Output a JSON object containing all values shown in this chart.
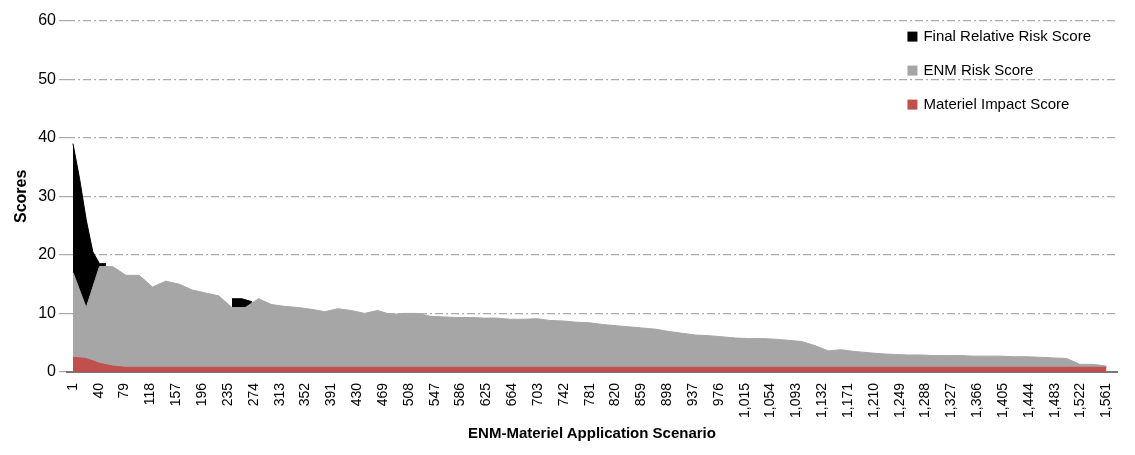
{
  "chart_data": {
    "type": "area",
    "xlabel": "ENM-Materiel Application Scenario",
    "ylabel": "Scores",
    "x": [
      1,
      21,
      41,
      61,
      81,
      101,
      121,
      141,
      161,
      181,
      201,
      221,
      241,
      261,
      281,
      301,
      321,
      341,
      361,
      381,
      401,
      421,
      441,
      461,
      481,
      501,
      521,
      541,
      561,
      581,
      601,
      621,
      641,
      661,
      681,
      701,
      721,
      741,
      761,
      781,
      801,
      821,
      841,
      861,
      881,
      901,
      921,
      941,
      961,
      981,
      1001,
      1021,
      1041,
      1061,
      1081,
      1101,
      1121,
      1141,
      1161,
      1181,
      1201,
      1221,
      1241,
      1261,
      1281,
      1301,
      1321,
      1341,
      1361,
      1381,
      1401,
      1421,
      1441,
      1461,
      1481,
      1501,
      1521,
      1541,
      1561
    ],
    "series": [
      {
        "name": "Final Relative Risk Score",
        "color": "#000000",
        "x": [
          1,
          11,
          21,
          31,
          41,
          51,
          61,
          241,
          256,
          271
        ],
        "values": [
          39,
          33,
          26,
          20.5,
          18.5,
          18.5,
          null,
          12.5,
          12.5,
          12
        ]
      },
      {
        "name": "ENM Risk Score",
        "color": "#a6a6a6",
        "values": [
          17,
          11,
          18,
          18,
          16.5,
          16.5,
          14.5,
          15.5,
          15,
          14,
          13.5,
          13,
          11,
          11,
          12.5,
          11.5,
          11.2,
          11,
          10.7,
          10.3,
          10.8,
          10.5,
          10,
          10.5,
          9.8,
          10,
          10,
          9.5,
          9.4,
          9.3,
          9.3,
          9.2,
          9.2,
          9,
          9,
          9.1,
          8.8,
          8.7,
          8.5,
          8.4,
          8.1,
          7.9,
          7.7,
          7.5,
          7.3,
          6.9,
          6.6,
          6.3,
          6.2,
          6,
          5.8,
          5.7,
          5.7,
          5.6,
          5.4,
          5.2,
          4.5,
          3.6,
          3.8,
          3.5,
          3.3,
          3.1,
          3,
          2.9,
          2.9,
          2.8,
          2.8,
          2.8,
          2.7,
          2.7,
          2.7,
          2.6,
          2.6,
          2.5,
          2.4,
          2.3,
          1.3,
          1.3,
          1
        ]
      },
      {
        "name": "Materiel Impact Score",
        "color": "#c0504d",
        "values": [
          2.5,
          2.3,
          1.5,
          1,
          0.8,
          0.8,
          0.8,
          0.8,
          0.8,
          0.8,
          0.8,
          0.8,
          0.8,
          0.8,
          0.8,
          0.8,
          0.8,
          0.8,
          0.8,
          0.8,
          0.8,
          0.8,
          0.8,
          0.8,
          0.8,
          0.8,
          0.8,
          0.8,
          0.8,
          0.8,
          0.8,
          0.8,
          0.8,
          0.8,
          0.8,
          0.8,
          0.8,
          0.8,
          0.8,
          0.8,
          0.8,
          0.8,
          0.8,
          0.8,
          0.8,
          0.8,
          0.8,
          0.8,
          0.8,
          0.8,
          0.8,
          0.8,
          0.8,
          0.8,
          0.8,
          0.8,
          0.8,
          0.8,
          0.8,
          0.8,
          0.8,
          0.8,
          0.8,
          0.8,
          0.8,
          0.8,
          0.8,
          0.8,
          0.8,
          0.8,
          0.8,
          0.8,
          0.8,
          0.8,
          0.8,
          0.8,
          0.8,
          0.8,
          0.8
        ]
      }
    ],
    "xlim": [
      -8,
      1577
    ],
    "xticks": [
      1,
      40,
      79,
      118,
      157,
      196,
      235,
      274,
      313,
      352,
      391,
      430,
      469,
      508,
      547,
      586,
      625,
      664,
      703,
      742,
      781,
      820,
      859,
      898,
      937,
      976,
      {
        "value": 1015,
        "label": "1,015"
      },
      {
        "value": 1054,
        "label": "1,054"
      },
      {
        "value": 1093,
        "label": "1,093"
      },
      {
        "value": 1132,
        "label": "1,132"
      },
      {
        "value": 1171,
        "label": "1,171"
      },
      {
        "value": 1210,
        "label": "1,210"
      },
      {
        "value": 1249,
        "label": "1,249"
      },
      {
        "value": 1288,
        "label": "1,288"
      },
      {
        "value": 1327,
        "label": "1,327"
      },
      {
        "value": 1366,
        "label": "1,366"
      },
      {
        "value": 1405,
        "label": "1,405"
      },
      {
        "value": 1444,
        "label": "1,444"
      },
      {
        "value": 1483,
        "label": "1,483"
      },
      {
        "value": 1522,
        "label": "1,522"
      },
      {
        "value": 1561,
        "label": "1,561"
      }
    ],
    "ylim": [
      0,
      60
    ],
    "yticks": [
      0,
      10,
      20,
      30,
      40,
      50,
      60
    ],
    "grid": "y",
    "legend": "top right"
  }
}
